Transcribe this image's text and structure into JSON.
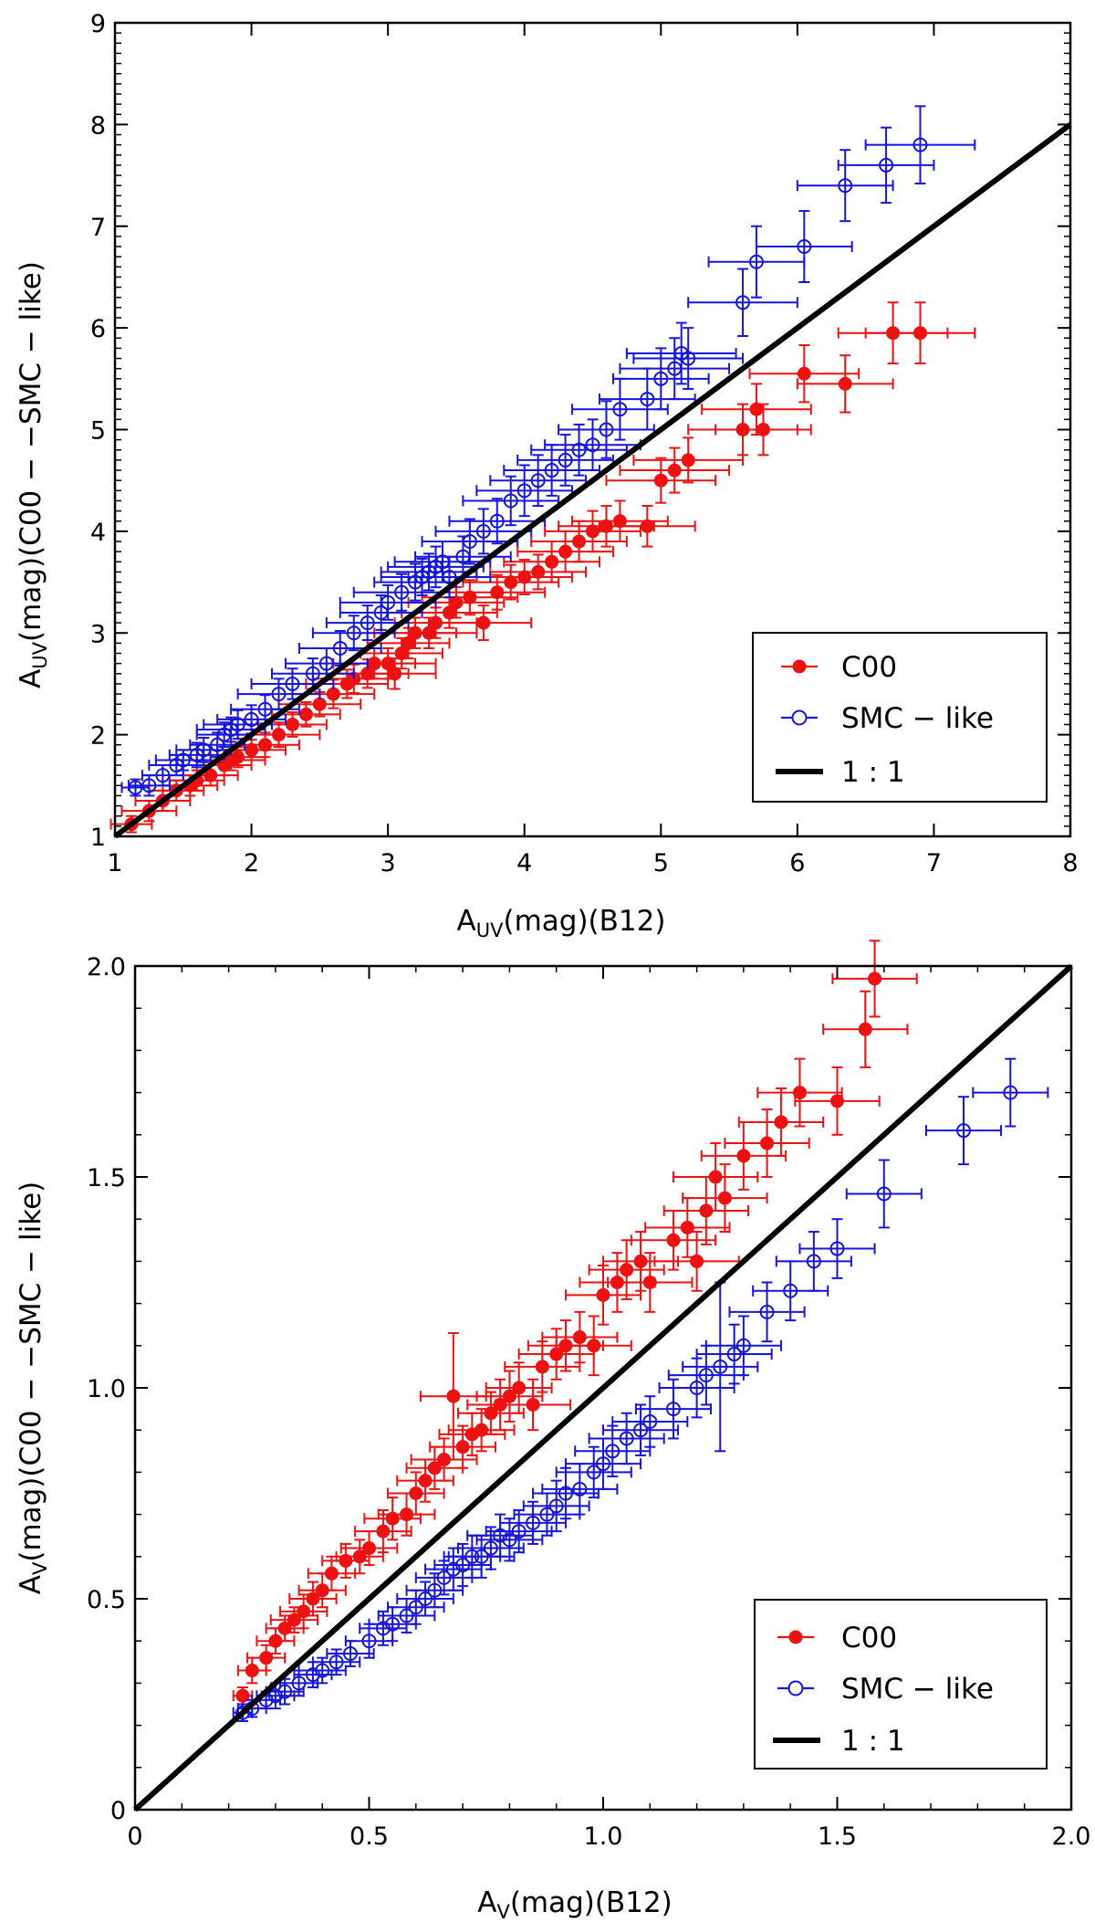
{
  "chart_data": [
    {
      "type": "scatter",
      "xlabel_main": "A",
      "xlabel_sub": "UV",
      "xlabel_rest": "(mag)(B12)",
      "ylabel_main": "A",
      "ylabel_sub": "UV",
      "ylabel_rest": "(mag)(C00 − −SMC − like)",
      "xlim": [
        1,
        8
      ],
      "ylim": [
        1,
        9
      ],
      "xticks": [
        1,
        2,
        3,
        4,
        5,
        6,
        7,
        8
      ],
      "xticklabels": [
        "1",
        "2",
        "3",
        "4",
        "5",
        "6",
        "7",
        "8"
      ],
      "yticks": [
        1,
        2,
        3,
        4,
        5,
        6,
        7,
        8,
        9
      ],
      "yticklabels": [
        "1",
        "2",
        "3",
        "4",
        "5",
        "6",
        "7",
        "8",
        "9"
      ],
      "legend": {
        "location": "lower-right",
        "entries": [
          "C00",
          "SMC − like",
          "1 : 1"
        ]
      },
      "series": [
        {
          "name": "C00",
          "marker": "filled-circle",
          "color": "#ee1111",
          "x": [
            1.12,
            1.25,
            1.35,
            1.45,
            1.55,
            1.6,
            1.7,
            1.8,
            1.85,
            1.9,
            2.0,
            2.1,
            2.2,
            2.3,
            2.4,
            2.5,
            2.6,
            2.7,
            2.75,
            2.85,
            2.9,
            3.0,
            3.05,
            3.1,
            3.15,
            3.2,
            3.3,
            3.35,
            3.45,
            3.5,
            3.6,
            3.7,
            3.8,
            3.9,
            4.0,
            4.1,
            4.2,
            4.3,
            4.4,
            4.5,
            4.6,
            4.7,
            4.9,
            5.0,
            5.1,
            5.2,
            5.6,
            5.7,
            5.75,
            6.05,
            6.35,
            6.7,
            6.9
          ],
          "y": [
            1.12,
            1.25,
            1.35,
            1.45,
            1.5,
            1.55,
            1.6,
            1.7,
            1.75,
            1.78,
            1.85,
            1.9,
            2.0,
            2.1,
            2.2,
            2.3,
            2.4,
            2.5,
            2.55,
            2.6,
            2.7,
            2.7,
            2.6,
            2.8,
            2.9,
            3.0,
            3.0,
            3.1,
            3.2,
            3.3,
            3.35,
            3.1,
            3.4,
            3.5,
            3.55,
            3.6,
            3.7,
            3.8,
            3.9,
            4.0,
            4.05,
            4.1,
            4.05,
            4.5,
            4.6,
            4.7,
            5.0,
            5.2,
            5.0,
            5.55,
            5.45,
            5.95,
            5.95
          ],
          "xerr": [
            0.15,
            0.2,
            0.2,
            0.2,
            0.2,
            0.2,
            0.2,
            0.2,
            0.25,
            0.2,
            0.25,
            0.25,
            0.3,
            0.25,
            0.25,
            0.3,
            0.3,
            0.3,
            0.3,
            0.3,
            0.3,
            0.35,
            0.3,
            0.3,
            0.3,
            0.3,
            0.35,
            0.3,
            0.35,
            0.35,
            0.35,
            0.35,
            0.35,
            0.35,
            0.35,
            0.35,
            0.35,
            0.35,
            0.35,
            0.35,
            0.35,
            0.35,
            0.35,
            0.4,
            0.4,
            0.4,
            0.4,
            0.4,
            0.35,
            0.4,
            0.35,
            0.4,
            0.4
          ],
          "yerr": [
            0.08,
            0.1,
            0.1,
            0.1,
            0.1,
            0.1,
            0.1,
            0.1,
            0.1,
            0.1,
            0.1,
            0.12,
            0.12,
            0.12,
            0.12,
            0.12,
            0.14,
            0.14,
            0.14,
            0.14,
            0.15,
            0.15,
            0.15,
            0.15,
            0.15,
            0.15,
            0.15,
            0.15,
            0.15,
            0.15,
            0.17,
            0.17,
            0.17,
            0.17,
            0.17,
            0.17,
            0.2,
            0.2,
            0.2,
            0.2,
            0.2,
            0.2,
            0.2,
            0.22,
            0.22,
            0.22,
            0.25,
            0.25,
            0.25,
            0.28,
            0.28,
            0.3,
            0.3
          ]
        },
        {
          "name": "SMC − like",
          "marker": "open-circle",
          "color": "#1515dd",
          "x": [
            1.15,
            1.25,
            1.35,
            1.45,
            1.5,
            1.6,
            1.65,
            1.75,
            1.8,
            1.85,
            1.9,
            2.0,
            2.1,
            2.2,
            2.3,
            2.45,
            2.55,
            2.65,
            2.75,
            2.85,
            2.95,
            3.0,
            3.1,
            3.2,
            3.25,
            3.3,
            3.35,
            3.4,
            3.45,
            3.55,
            3.6,
            3.7,
            3.8,
            3.9,
            4.0,
            4.1,
            4.2,
            4.3,
            4.4,
            4.5,
            4.6,
            4.7,
            4.9,
            5.0,
            5.1,
            5.15,
            5.2,
            5.6,
            5.7,
            6.05,
            6.35,
            6.65,
            6.9
          ],
          "y": [
            1.48,
            1.5,
            1.6,
            1.7,
            1.75,
            1.8,
            1.85,
            1.9,
            2.0,
            2.05,
            2.1,
            2.15,
            2.25,
            2.4,
            2.5,
            2.6,
            2.7,
            2.85,
            3.0,
            3.1,
            3.2,
            3.3,
            3.4,
            3.5,
            3.55,
            3.6,
            3.65,
            3.7,
            3.55,
            3.75,
            3.9,
            4.0,
            4.1,
            4.3,
            4.4,
            4.5,
            4.6,
            4.7,
            4.8,
            4.85,
            5.0,
            5.2,
            5.3,
            5.5,
            5.6,
            5.75,
            5.7,
            6.25,
            6.65,
            6.8,
            7.4,
            7.6,
            7.8
          ],
          "xerr": [
            0.1,
            0.15,
            0.15,
            0.2,
            0.2,
            0.2,
            0.2,
            0.2,
            0.2,
            0.25,
            0.25,
            0.25,
            0.25,
            0.3,
            0.3,
            0.3,
            0.3,
            0.3,
            0.3,
            0.3,
            0.3,
            0.35,
            0.35,
            0.3,
            0.3,
            0.35,
            0.35,
            0.35,
            0.3,
            0.35,
            0.35,
            0.35,
            0.35,
            0.35,
            0.35,
            0.35,
            0.35,
            0.35,
            0.35,
            0.35,
            0.35,
            0.35,
            0.35,
            0.35,
            0.4,
            0.4,
            0.4,
            0.4,
            0.35,
            0.35,
            0.35,
            0.35,
            0.4
          ],
          "yerr": [
            0.08,
            0.1,
            0.1,
            0.1,
            0.1,
            0.12,
            0.12,
            0.12,
            0.12,
            0.12,
            0.14,
            0.14,
            0.14,
            0.15,
            0.15,
            0.15,
            0.15,
            0.17,
            0.17,
            0.17,
            0.17,
            0.17,
            0.18,
            0.18,
            0.18,
            0.18,
            0.2,
            0.2,
            0.2,
            0.2,
            0.22,
            0.22,
            0.22,
            0.24,
            0.25,
            0.25,
            0.25,
            0.25,
            0.25,
            0.25,
            0.28,
            0.3,
            0.3,
            0.3,
            0.3,
            0.3,
            0.3,
            0.33,
            0.35,
            0.35,
            0.35,
            0.37,
            0.38
          ]
        }
      ],
      "reference_line": {
        "name": "1 : 1",
        "x": [
          1,
          8
        ],
        "y": [
          1,
          8
        ],
        "color": "#000000"
      }
    },
    {
      "type": "scatter",
      "xlabel_main": "A",
      "xlabel_sub": "V",
      "xlabel_rest": "(mag)(B12)",
      "ylabel_main": "A",
      "ylabel_sub": "V",
      "ylabel_rest": "(mag)(C00 − −SMC − like)",
      "xlim": [
        0,
        2
      ],
      "ylim": [
        0,
        2
      ],
      "xticks": [
        0,
        0.5,
        1.0,
        1.5,
        2.0
      ],
      "xticklabels": [
        "0",
        "0.5",
        "1.0",
        "1.5",
        "2.0"
      ],
      "yticks": [
        0,
        0.5,
        1.0,
        1.5,
        2.0
      ],
      "yticklabels": [
        "0",
        "0.5",
        "1.0",
        "1.5",
        "2.0"
      ],
      "legend": {
        "location": "lower-right",
        "entries": [
          "C00",
          "SMC − like",
          "1 : 1"
        ]
      },
      "series": [
        {
          "name": "C00",
          "marker": "filled-circle",
          "color": "#ee1111",
          "x": [
            0.23,
            0.25,
            0.28,
            0.3,
            0.32,
            0.34,
            0.36,
            0.38,
            0.4,
            0.42,
            0.45,
            0.48,
            0.5,
            0.53,
            0.55,
            0.58,
            0.6,
            0.62,
            0.64,
            0.66,
            0.68,
            0.7,
            0.72,
            0.74,
            0.76,
            0.78,
            0.8,
            0.82,
            0.85,
            0.87,
            0.9,
            0.92,
            0.95,
            0.98,
            1.0,
            1.03,
            1.05,
            1.08,
            1.1,
            1.15,
            1.18,
            1.2,
            1.22,
            1.24,
            1.26,
            1.3,
            1.35,
            1.38,
            1.42,
            1.5,
            1.56,
            1.58
          ],
          "y": [
            0.27,
            0.33,
            0.36,
            0.4,
            0.43,
            0.45,
            0.47,
            0.5,
            0.52,
            0.56,
            0.59,
            0.6,
            0.62,
            0.66,
            0.69,
            0.7,
            0.75,
            0.78,
            0.81,
            0.83,
            0.98,
            0.86,
            0.89,
            0.9,
            0.94,
            0.96,
            0.98,
            1.0,
            0.96,
            1.05,
            1.08,
            1.1,
            1.12,
            1.1,
            1.22,
            1.25,
            1.28,
            1.3,
            1.25,
            1.35,
            1.38,
            1.3,
            1.42,
            1.5,
            1.45,
            1.55,
            1.58,
            1.63,
            1.7,
            1.68,
            1.85,
            1.97
          ],
          "xerr": [
            0.02,
            0.03,
            0.04,
            0.04,
            0.04,
            0.05,
            0.05,
            0.05,
            0.05,
            0.05,
            0.05,
            0.05,
            0.06,
            0.06,
            0.06,
            0.06,
            0.06,
            0.06,
            0.06,
            0.07,
            0.07,
            0.07,
            0.07,
            0.07,
            0.07,
            0.07,
            0.07,
            0.07,
            0.08,
            0.08,
            0.08,
            0.08,
            0.08,
            0.08,
            0.08,
            0.08,
            0.08,
            0.08,
            0.09,
            0.09,
            0.09,
            0.09,
            0.09,
            0.09,
            0.09,
            0.09,
            0.09,
            0.09,
            0.09,
            0.09,
            0.09,
            0.09
          ],
          "yerr": [
            0.02,
            0.03,
            0.03,
            0.03,
            0.03,
            0.03,
            0.04,
            0.04,
            0.04,
            0.04,
            0.04,
            0.04,
            0.04,
            0.05,
            0.05,
            0.05,
            0.05,
            0.05,
            0.05,
            0.05,
            0.15,
            0.05,
            0.05,
            0.05,
            0.05,
            0.06,
            0.06,
            0.06,
            0.06,
            0.06,
            0.06,
            0.06,
            0.06,
            0.07,
            0.07,
            0.07,
            0.07,
            0.07,
            0.07,
            0.07,
            0.07,
            0.07,
            0.08,
            0.08,
            0.08,
            0.08,
            0.08,
            0.08,
            0.08,
            0.08,
            0.09,
            0.09
          ]
        },
        {
          "name": "SMC − like",
          "marker": "open-circle",
          "color": "#1515dd",
          "x": [
            0.23,
            0.25,
            0.28,
            0.3,
            0.32,
            0.35,
            0.38,
            0.4,
            0.43,
            0.46,
            0.5,
            0.53,
            0.55,
            0.58,
            0.6,
            0.62,
            0.64,
            0.66,
            0.68,
            0.7,
            0.72,
            0.74,
            0.76,
            0.78,
            0.8,
            0.82,
            0.85,
            0.88,
            0.9,
            0.92,
            0.95,
            0.98,
            1.0,
            1.02,
            1.05,
            1.08,
            1.1,
            1.15,
            1.2,
            1.22,
            1.25,
            1.28,
            1.3,
            1.35,
            1.4,
            1.45,
            1.5,
            1.6,
            1.77,
            1.87
          ],
          "y": [
            0.23,
            0.24,
            0.26,
            0.27,
            0.28,
            0.3,
            0.32,
            0.33,
            0.35,
            0.37,
            0.4,
            0.43,
            0.44,
            0.46,
            0.48,
            0.5,
            0.52,
            0.55,
            0.57,
            0.58,
            0.6,
            0.6,
            0.62,
            0.65,
            0.64,
            0.66,
            0.68,
            0.7,
            0.72,
            0.75,
            0.76,
            0.8,
            0.82,
            0.85,
            0.88,
            0.9,
            0.92,
            0.95,
            1.0,
            1.03,
            1.05,
            1.08,
            1.1,
            1.18,
            1.23,
            1.3,
            1.33,
            1.46,
            1.61,
            1.7
          ],
          "xerr": [
            0.02,
            0.03,
            0.03,
            0.04,
            0.04,
            0.04,
            0.04,
            0.05,
            0.05,
            0.05,
            0.05,
            0.05,
            0.05,
            0.06,
            0.06,
            0.06,
            0.06,
            0.06,
            0.06,
            0.06,
            0.06,
            0.07,
            0.07,
            0.07,
            0.07,
            0.07,
            0.07,
            0.07,
            0.07,
            0.07,
            0.08,
            0.08,
            0.08,
            0.08,
            0.08,
            0.08,
            0.08,
            0.08,
            0.08,
            0.08,
            0.08,
            0.08,
            0.08,
            0.08,
            0.08,
            0.08,
            0.08,
            0.08,
            0.08,
            0.08
          ],
          "yerr": [
            0.02,
            0.02,
            0.02,
            0.03,
            0.03,
            0.03,
            0.03,
            0.03,
            0.03,
            0.03,
            0.04,
            0.04,
            0.04,
            0.04,
            0.04,
            0.04,
            0.04,
            0.04,
            0.05,
            0.05,
            0.05,
            0.05,
            0.05,
            0.05,
            0.05,
            0.05,
            0.05,
            0.05,
            0.06,
            0.06,
            0.06,
            0.06,
            0.06,
            0.06,
            0.06,
            0.06,
            0.06,
            0.07,
            0.07,
            0.07,
            0.2,
            0.07,
            0.07,
            0.07,
            0.07,
            0.07,
            0.07,
            0.08,
            0.08,
            0.08
          ]
        }
      ],
      "reference_line": {
        "name": "1 : 1",
        "x": [
          0,
          2
        ],
        "y": [
          0,
          2
        ],
        "color": "#000000"
      }
    }
  ]
}
